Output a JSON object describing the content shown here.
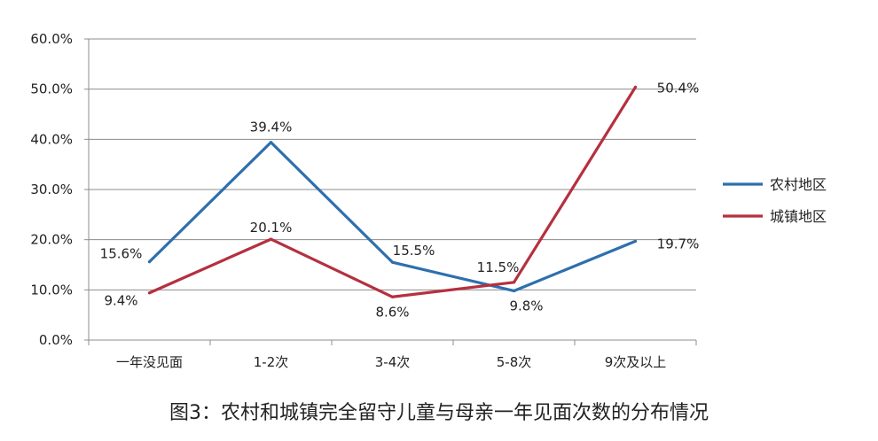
{
  "caption": "图3：农村和城镇完全留守儿童与母亲一年见面次数的分布情况",
  "chart_data": {
    "type": "line",
    "categories": [
      "一年没见面",
      "1-2次",
      "3-4次",
      "5-8次",
      "9次及以上"
    ],
    "y_ticks": [
      "0.0%",
      "10.0%",
      "20.0%",
      "30.0%",
      "40.0%",
      "50.0%",
      "60.0%"
    ],
    "ylim": [
      0,
      60
    ],
    "grid": true,
    "legend_position": "right",
    "series": [
      {
        "name": "农村地区",
        "color": "#2e6fad",
        "values": [
          15.6,
          39.4,
          15.5,
          9.8,
          19.7
        ],
        "labels": [
          "15.6%",
          "39.4%",
          "15.5%",
          "9.8%",
          "19.7%"
        ]
      },
      {
        "name": "城镇地区",
        "color": "#b5303f",
        "values": [
          9.4,
          20.1,
          8.6,
          11.5,
          50.4
        ],
        "labels": [
          "9.4%",
          "20.1%",
          "8.6%",
          "11.5%",
          "50.4%"
        ]
      }
    ]
  }
}
